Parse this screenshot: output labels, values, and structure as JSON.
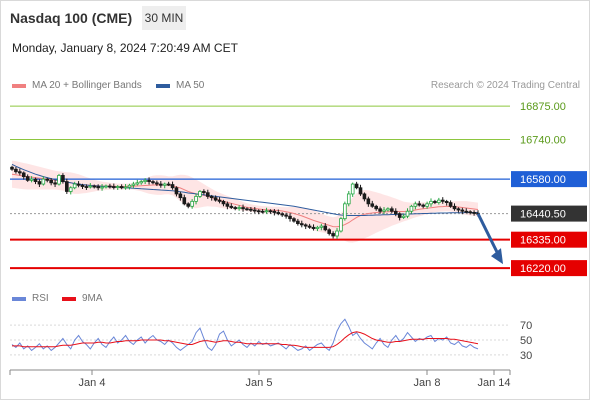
{
  "header": {
    "title": "Nasdaq 100 (CME)",
    "interval": "30 MIN"
  },
  "timestamp": "Monday, January 8, 2024 7:20:49 AM CET",
  "credit": "Research © 2024 Trading Central",
  "legend": {
    "price": [
      {
        "label": "MA 20 + Bollinger Bands",
        "color": "#f08080"
      },
      {
        "label": "MA 50",
        "color": "#2e5c9e"
      }
    ],
    "rsi": [
      {
        "label": "RSI",
        "color": "#6a87d8"
      },
      {
        "label": "9MA",
        "color": "#e8101a"
      }
    ]
  },
  "chart_data": [
    {
      "type": "candlestick",
      "ylim": [
        16180,
        16900
      ],
      "x_ticks": [
        "Jan 4",
        "Jan 5",
        "Jan 8",
        "Jan 14"
      ],
      "levels": [
        {
          "value": 16875.0,
          "label": "16875.00",
          "kind": "resistance",
          "color": "#8dc63f"
        },
        {
          "value": 16740.0,
          "label": "16740.00",
          "kind": "resistance",
          "color": "#8dc63f"
        },
        {
          "value": 16580.0,
          "label": "16580.00",
          "kind": "pivot",
          "color": "#1f5fd6"
        },
        {
          "value": 16440.5,
          "label": "16440.50",
          "kind": "last-price",
          "color": "#333333"
        },
        {
          "value": 16335.0,
          "label": "16335.00",
          "kind": "support",
          "color": "#e50000"
        },
        {
          "value": 16220.0,
          "label": "16220.00",
          "kind": "support",
          "color": "#e50000"
        }
      ],
      "series": {
        "close": [
          16620,
          16610,
          16605,
          16590,
          16575,
          16580,
          16570,
          16560,
          16580,
          16575,
          16565,
          16560,
          16595,
          16570,
          16530,
          16545,
          16560,
          16555,
          16550,
          16548,
          16552,
          16550,
          16545,
          16548,
          16552,
          16550,
          16548,
          16550,
          16545,
          16548,
          16555,
          16560,
          16565,
          16570,
          16575,
          16570,
          16565,
          16560,
          16555,
          16560,
          16558,
          16545,
          16520,
          16505,
          16480,
          16470,
          16490,
          16510,
          16530,
          16525,
          16510,
          16505,
          16495,
          16490,
          16480,
          16470,
          16465,
          16462,
          16465,
          16460,
          16458,
          16455,
          16452,
          16450,
          16448,
          16452,
          16450,
          16445,
          16440,
          16435,
          16430,
          16420,
          16410,
          16400,
          16395,
          16390,
          16385,
          16380,
          16385,
          16390,
          16375,
          16360,
          16350,
          16370,
          16420,
          16480,
          16520,
          16560,
          16545,
          16520,
          16500,
          16480,
          16470,
          16460,
          16450,
          16455,
          16460,
          16450,
          16440,
          16425,
          16430,
          16450,
          16470,
          16480,
          16475,
          16470,
          16480,
          16490,
          16485,
          16495,
          16490,
          16485,
          16470,
          16460,
          16455,
          16450,
          16448,
          16445,
          16442,
          16440
        ],
        "ma20": [
          16600,
          16598,
          16595,
          16592,
          16590,
          16588,
          16586,
          16584,
          16582,
          16580,
          16578,
          16576,
          16574,
          16572,
          16568,
          16565,
          16562,
          16560,
          16558,
          16556,
          16555,
          16554,
          16553,
          16552,
          16552,
          16551,
          16551,
          16550,
          16550,
          16550,
          16550,
          16551,
          16552,
          16553,
          16554,
          16555,
          16556,
          16556,
          16556,
          16556,
          16555,
          16553,
          16549,
          16544,
          16537,
          16530,
          16525,
          16520,
          16517,
          16514,
          16510,
          16505,
          16500,
          16495,
          16490,
          16486,
          16482,
          16478,
          16474,
          16470,
          16466,
          16463,
          16461,
          16459,
          16457,
          16456,
          16455,
          16454,
          16453,
          16451,
          16448,
          16445,
          16441,
          16436,
          16431,
          16425,
          16419,
          16413,
          16408,
          16403,
          16398,
          16393,
          16388,
          16387,
          16390,
          16396,
          16404,
          16415,
          16425,
          16433,
          16438,
          16441,
          16443,
          16445,
          16446,
          16447,
          16448,
          16449,
          16449,
          16449,
          16449,
          16450,
          16452,
          16455,
          16458,
          16460,
          16462,
          16464,
          16466,
          16468,
          16469,
          16470,
          16469,
          16468,
          16467,
          16465,
          16463,
          16461,
          16459,
          16457
        ],
        "ma50": [
          16640,
          16632,
          16625,
          16618,
          16612,
          16606,
          16600,
          16595,
          16590,
          16586,
          16582,
          16578,
          16574,
          16571,
          16568,
          16565,
          16562,
          16560,
          16558,
          16556,
          16554,
          16553,
          16552,
          16551,
          16550,
          16549,
          16548,
          16547,
          16546,
          16545,
          16544,
          16543,
          16542,
          16541,
          16540,
          16539,
          16538,
          16537,
          16536,
          16535,
          16534,
          16533,
          16531,
          16529,
          16527,
          16524,
          16522,
          16520,
          16518,
          16516,
          16514,
          16512,
          16510,
          16508,
          16506,
          16504,
          16502,
          16500,
          16498,
          16496,
          16494,
          16492,
          16490,
          16488,
          16486,
          16484,
          16482,
          16480,
          16478,
          16476,
          16474,
          16472,
          16470,
          16467,
          16464,
          16461,
          16458,
          16455,
          16452,
          16449,
          16446,
          16443,
          16440,
          16437,
          16435,
          16434,
          16433,
          16433,
          16433,
          16433,
          16433,
          16434,
          16434,
          16435,
          16435,
          16436,
          16436,
          16437,
          16437,
          16438,
          16438,
          16439,
          16439,
          16440,
          16440,
          16441,
          16441,
          16442,
          16442,
          16443,
          16443,
          16443,
          16444,
          16444,
          16444,
          16444,
          16445,
          16445,
          16445,
          16445
        ]
      },
      "bollinger_halfwidth": [
        55,
        55,
        54,
        53,
        52,
        50,
        48,
        46,
        44,
        42,
        40,
        38,
        38,
        38,
        40,
        42,
        42,
        40,
        36,
        32,
        28,
        24,
        20,
        18,
        16,
        14,
        12,
        12,
        12,
        12,
        12,
        14,
        18,
        22,
        28,
        34,
        38,
        40,
        40,
        38,
        36,
        38,
        46,
        54,
        60,
        64,
        62,
        58,
        52,
        46,
        40,
        36,
        32,
        30,
        28,
        26,
        24,
        22,
        20,
        18,
        16,
        15,
        14,
        14,
        14,
        14,
        14,
        14,
        15,
        16,
        18,
        22,
        26,
        30,
        34,
        36,
        38,
        40,
        40,
        38,
        36,
        36,
        38,
        42,
        52,
        66,
        80,
        92,
        98,
        100,
        98,
        94,
        88,
        82,
        76,
        70,
        64,
        58,
        52,
        46,
        40,
        36,
        32,
        30,
        28,
        26,
        24,
        22,
        20,
        20,
        20,
        20,
        20,
        22,
        24,
        26,
        28,
        28,
        28,
        28
      ]
    },
    {
      "type": "line",
      "ylim": [
        15,
        85
      ],
      "y_ticks": [
        70,
        50,
        30
      ],
      "series": [
        {
          "name": "RSI",
          "color": "#6a87d8",
          "values": [
            44,
            40,
            46,
            38,
            42,
            36,
            40,
            45,
            38,
            42,
            36,
            40,
            46,
            52,
            44,
            38,
            50,
            56,
            48,
            44,
            38,
            46,
            52,
            44,
            40,
            48,
            54,
            46,
            50,
            56,
            48,
            44,
            50,
            54,
            46,
            52,
            56,
            50,
            48,
            44,
            50,
            46,
            40,
            36,
            40,
            44,
            48,
            60,
            66,
            52,
            40,
            36,
            44,
            58,
            62,
            50,
            42,
            46,
            50,
            44,
            40,
            46,
            42,
            48,
            44,
            46,
            42,
            44,
            46,
            42,
            38,
            44,
            40,
            36,
            38,
            42,
            36,
            40,
            44,
            46,
            40,
            36,
            46,
            62,
            72,
            78,
            68,
            56,
            60,
            52,
            46,
            42,
            38,
            46,
            52,
            44,
            40,
            50,
            56,
            48,
            52,
            60,
            54,
            48,
            52,
            50,
            54,
            56,
            48,
            52,
            50,
            54,
            46,
            44,
            48,
            42,
            40,
            44,
            40,
            38
          ]
        },
        {
          "name": "9MA",
          "color": "#e8101a",
          "values": [
            42,
            42,
            42,
            41,
            41,
            41,
            41,
            41,
            41,
            41,
            41,
            41,
            42,
            43,
            43,
            43,
            44,
            45,
            46,
            46,
            46,
            46,
            47,
            47,
            46,
            46,
            47,
            48,
            48,
            49,
            49,
            49,
            49,
            50,
            50,
            50,
            50,
            50,
            50,
            49,
            49,
            48,
            47,
            46,
            45,
            44,
            44,
            46,
            48,
            49,
            49,
            48,
            47,
            48,
            49,
            49,
            48,
            47,
            47,
            46,
            45,
            45,
            45,
            45,
            45,
            45,
            45,
            45,
            45,
            44,
            44,
            43,
            43,
            42,
            41,
            40,
            40,
            40,
            40,
            40,
            40,
            40,
            41,
            44,
            48,
            53,
            57,
            60,
            61,
            60,
            58,
            55,
            52,
            50,
            49,
            48,
            47,
            47,
            48,
            48,
            49,
            50,
            51,
            51,
            51,
            51,
            52,
            52,
            52,
            52,
            52,
            52,
            51,
            51,
            50,
            49,
            48,
            47,
            46,
            45
          ]
        }
      ]
    }
  ]
}
